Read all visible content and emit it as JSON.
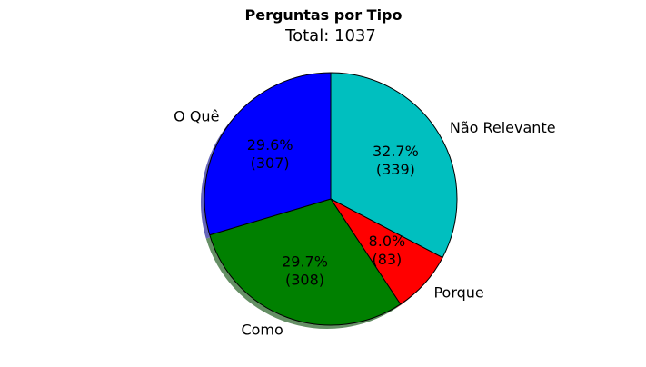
{
  "chart_data": {
    "type": "pie",
    "title": "Perguntas por Tipo",
    "subtitle": "Total: 1037",
    "categories": [
      "Não Relevante",
      "Porque",
      "Como",
      "O Quê"
    ],
    "values": [
      339,
      83,
      308,
      307
    ],
    "percent_labels": [
      "32.7%",
      "8.0%",
      "29.7%",
      "29.6%"
    ],
    "count_labels": [
      "(339)",
      "(83)",
      "(308)",
      "(307)"
    ],
    "colors": [
      "#00bfbf",
      "#ff0000",
      "#008000",
      "#0000ff"
    ],
    "start_angle_deg": 90,
    "direction": "clockwise",
    "shadow": true,
    "legend": "none"
  }
}
